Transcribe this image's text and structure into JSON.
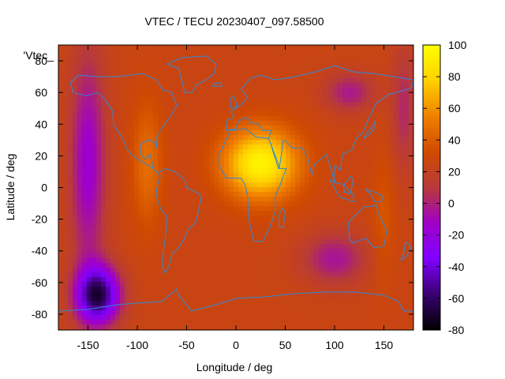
{
  "chart_data": {
    "type": "heatmap",
    "title": "VTEC / TECU 20230407_097.58500",
    "xlabel": "Longitude / deg",
    "ylabel": "Latitude / deg",
    "xlim": [
      -180,
      180
    ],
    "ylim": [
      -90,
      90
    ],
    "x_ticks": [
      -150,
      -100,
      -50,
      0,
      50,
      100,
      150
    ],
    "y_ticks": [
      -80,
      -60,
      -40,
      -20,
      0,
      20,
      40,
      60,
      80
    ],
    "x_tick_labels": [
      "-150",
      "-100",
      "-50",
      "0",
      "50",
      "100",
      "150"
    ],
    "y_tick_labels": [
      "-80",
      "-60",
      "-40",
      "-20",
      "0",
      "20",
      "40",
      "60",
      "80"
    ],
    "legend_entry": "'Vtec_",
    "colorbar": {
      "range": [
        -80,
        100
      ],
      "ticks": [
        -80,
        -60,
        -40,
        -20,
        0,
        20,
        40,
        60,
        80,
        100
      ],
      "tick_labels": [
        "-80",
        "-60",
        "-40",
        "-20",
        "0",
        "20",
        "40",
        "60",
        "80",
        "100"
      ],
      "palette": [
        "#000000",
        "#3a0070",
        "#8000ff",
        "#a000c8",
        "#b83a3a",
        "#d04a00",
        "#f08000",
        "#ffd000",
        "#ffff00"
      ]
    },
    "features": [
      {
        "kind": "equatorial maximum",
        "lon": 25,
        "lat": 15,
        "value": 95
      },
      {
        "kind": "south pacific minimum",
        "lon": -140,
        "lat": -68,
        "value": -65
      },
      {
        "kind": "north pacific minimum",
        "lon": -150,
        "lat": 15,
        "value": -20
      },
      {
        "kind": "south indian minimum",
        "lon": 100,
        "lat": -45,
        "value": -5
      },
      {
        "kind": "background",
        "value": 25
      }
    ],
    "overlay": "coastlines"
  }
}
